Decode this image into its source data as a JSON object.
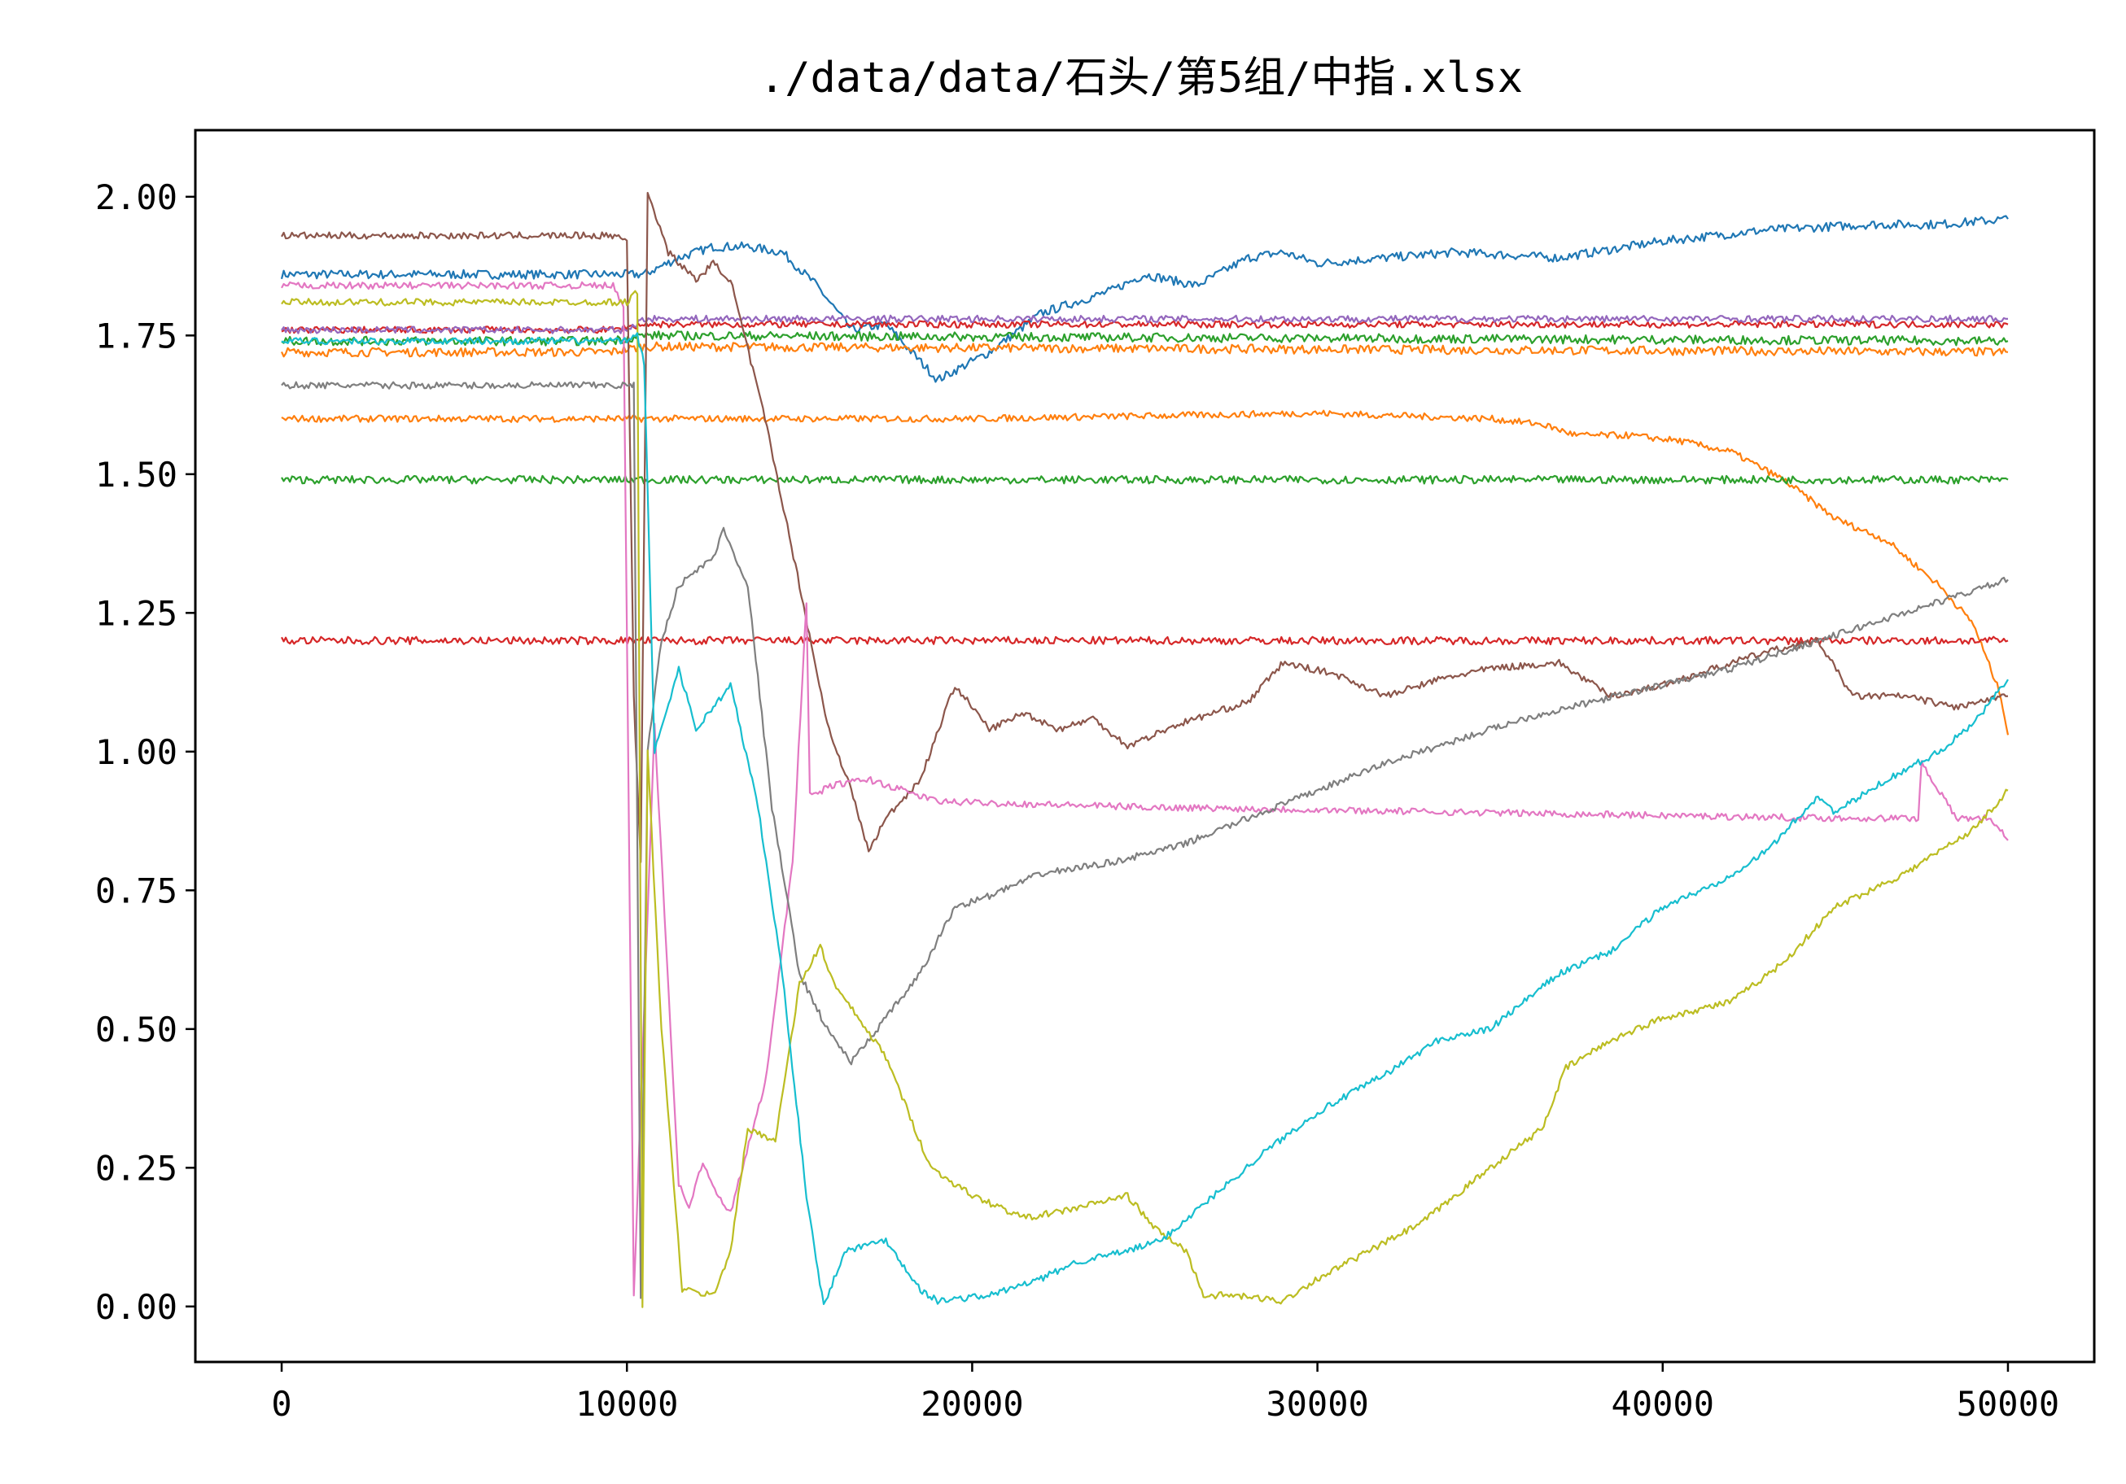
{
  "chart_data": {
    "type": "line",
    "title": "./data/data/石头/第5组/中指.xlsx",
    "xlabel": "",
    "ylabel": "",
    "xlim": [
      -2500,
      52500
    ],
    "ylim": [
      -0.1,
      2.12
    ],
    "xticks": [
      0,
      10000,
      20000,
      30000,
      40000,
      50000
    ],
    "xtick_labels": [
      "0",
      "10000",
      "20000",
      "30000",
      "40000",
      "50000"
    ],
    "yticks": [
      0.0,
      0.25,
      0.5,
      0.75,
      1.0,
      1.25,
      1.5,
      1.75,
      2.0
    ],
    "ytick_labels": [
      "0.00",
      "0.25",
      "0.50",
      "0.75",
      "1.00",
      "1.25",
      "1.50",
      "1.75",
      "2.00"
    ],
    "grid": false,
    "legend": "none",
    "series": [
      {
        "color": "#1f77b4",
        "noise": 0.008,
        "x": [
          0,
          10000,
          10500,
          11500,
          12500,
          13500,
          14500,
          15500,
          16500,
          17500,
          19000,
          20500,
          22000,
          24000,
          25000,
          26500,
          28000,
          29000,
          30000,
          32000,
          34000,
          37000,
          40000,
          43000,
          46000,
          48000,
          50000
        ],
        "y": [
          1.86,
          1.86,
          1.86,
          1.89,
          1.91,
          1.91,
          1.9,
          1.84,
          1.76,
          1.77,
          1.67,
          1.72,
          1.79,
          1.83,
          1.86,
          1.84,
          1.89,
          1.9,
          1.88,
          1.89,
          1.9,
          1.89,
          1.92,
          1.94,
          1.95,
          1.95,
          1.96
        ]
      },
      {
        "color": "#ff7f0e",
        "noise": 0.008,
        "x": [
          0,
          9500,
          10500,
          50000
        ],
        "y": [
          1.72,
          1.72,
          1.73,
          1.72
        ]
      },
      {
        "color": "#ff7f0e",
        "noise": 0.006,
        "x": [
          0,
          10000,
          20000,
          30000,
          35000,
          36500,
          37500,
          39000,
          40500,
          42000,
          43500,
          45000,
          46500,
          48000,
          49000,
          49800,
          50000
        ],
        "y": [
          1.6,
          1.6,
          1.6,
          1.61,
          1.6,
          1.59,
          1.57,
          1.57,
          1.56,
          1.54,
          1.49,
          1.42,
          1.38,
          1.3,
          1.23,
          1.1,
          1.03
        ]
      },
      {
        "color": "#2ca02c",
        "noise": 0.008,
        "x": [
          0,
          9500,
          10500,
          50000
        ],
        "y": [
          1.74,
          1.74,
          1.75,
          1.74
        ]
      },
      {
        "color": "#2ca02c",
        "noise": 0.007,
        "x": [
          0,
          50000
        ],
        "y": [
          1.49,
          1.49
        ]
      },
      {
        "color": "#d62728",
        "noise": 0.006,
        "x": [
          0,
          9500,
          10500,
          50000
        ],
        "y": [
          1.76,
          1.76,
          1.77,
          1.77
        ]
      },
      {
        "color": "#d62728",
        "noise": 0.007,
        "x": [
          0,
          50000
        ],
        "y": [
          1.2,
          1.2
        ]
      },
      {
        "color": "#9467bd",
        "noise": 0.006,
        "x": [
          0,
          10000,
          10500,
          50000
        ],
        "y": [
          1.76,
          1.76,
          1.78,
          1.78
        ]
      },
      {
        "color": "#8c564b",
        "noise": 0.006,
        "x": [
          0,
          9700,
          10000,
          10200,
          10400,
          10600,
          11200,
          12000,
          12500,
          13000,
          14000,
          15000,
          15800,
          16500,
          17000,
          17500,
          18500,
          19500,
          20500,
          21500,
          22500,
          23500,
          24500,
          26000,
          28000,
          29000,
          30500,
          32000,
          33500,
          35000,
          37000,
          38500,
          40000,
          41500,
          43000,
          44500,
          45500,
          47000,
          48500,
          50000
        ],
        "y": [
          1.93,
          1.93,
          1.92,
          1.1,
          0.8,
          2.01,
          1.9,
          1.85,
          1.88,
          1.85,
          1.6,
          1.3,
          1.05,
          0.93,
          0.82,
          0.88,
          0.95,
          1.12,
          1.04,
          1.07,
          1.04,
          1.06,
          1.01,
          1.05,
          1.09,
          1.16,
          1.14,
          1.1,
          1.13,
          1.15,
          1.16,
          1.1,
          1.12,
          1.15,
          1.18,
          1.2,
          1.1,
          1.1,
          1.08,
          1.1
        ]
      },
      {
        "color": "#e377c2",
        "noise": 0.006,
        "x": [
          0,
          9600,
          9900,
          10200,
          10800,
          11500,
          11800,
          12200,
          12600,
          13000,
          14000,
          14800,
          15200,
          15300,
          16000,
          17000,
          18000,
          19000,
          25000,
          35000,
          45000,
          47400,
          47500,
          48500,
          49500,
          50000
        ],
        "y": [
          1.84,
          1.84,
          1.8,
          0.02,
          1.05,
          0.22,
          0.18,
          0.26,
          0.2,
          0.17,
          0.4,
          0.8,
          1.27,
          0.92,
          0.94,
          0.95,
          0.93,
          0.91,
          0.9,
          0.89,
          0.88,
          0.88,
          0.98,
          0.88,
          0.88,
          0.84
        ]
      },
      {
        "color": "#7f7f7f",
        "noise": 0.006,
        "x": [
          0,
          10000,
          10200,
          10400,
          10600,
          11000,
          11500,
          12500,
          12800,
          13500,
          14200,
          15000,
          15800,
          16500,
          17500,
          18500,
          19500,
          20500,
          22000,
          24000,
          26000,
          28000,
          30000,
          32000,
          34000,
          36000,
          38000,
          40000,
          42000,
          44000,
          46000,
          48000,
          50000
        ],
        "y": [
          1.66,
          1.66,
          1.66,
          0.02,
          1.0,
          1.2,
          1.3,
          1.35,
          1.4,
          1.3,
          0.9,
          0.6,
          0.5,
          0.44,
          0.52,
          0.6,
          0.72,
          0.74,
          0.78,
          0.8,
          0.83,
          0.88,
          0.93,
          0.98,
          1.02,
          1.06,
          1.09,
          1.12,
          1.15,
          1.19,
          1.23,
          1.27,
          1.31
        ]
      },
      {
        "color": "#bcbd22",
        "noise": 0.006,
        "x": [
          0,
          10000,
          10300,
          10450,
          10600,
          11000,
          11600,
          12500,
          13000,
          13500,
          14300,
          15000,
          15600,
          16000,
          17500,
          18800,
          20000,
          21500,
          22500,
          24500,
          25300,
          26200,
          26700,
          27500,
          29000,
          30000,
          31500,
          33000,
          35000,
          36500,
          37200,
          38500,
          40000,
          42000,
          43500,
          45000,
          47000,
          49000,
          50000
        ],
        "y": [
          1.81,
          1.81,
          1.83,
          0.0,
          1.0,
          0.5,
          0.03,
          0.02,
          0.1,
          0.32,
          0.3,
          0.58,
          0.65,
          0.58,
          0.45,
          0.25,
          0.2,
          0.16,
          0.17,
          0.2,
          0.14,
          0.1,
          0.02,
          0.02,
          0.01,
          0.05,
          0.1,
          0.15,
          0.25,
          0.32,
          0.43,
          0.48,
          0.52,
          0.55,
          0.62,
          0.72,
          0.78,
          0.86,
          0.93
        ]
      },
      {
        "color": "#17becf",
        "noise": 0.006,
        "x": [
          0,
          10000,
          10300,
          10500,
          10800,
          11500,
          12000,
          12500,
          13000,
          13800,
          14500,
          15200,
          15700,
          16300,
          17500,
          18500,
          19000,
          20500,
          22000,
          23000,
          24500,
          25500,
          27000,
          28500,
          30000,
          32000,
          33500,
          35000,
          37000,
          38500,
          40000,
          41500,
          43000,
          44500,
          45000,
          46500,
          48000,
          49000,
          50000
        ],
        "y": [
          1.74,
          1.74,
          1.75,
          1.7,
          1.0,
          1.15,
          1.04,
          1.08,
          1.12,
          0.9,
          0.6,
          0.2,
          0.0,
          0.1,
          0.12,
          0.03,
          0.01,
          0.02,
          0.05,
          0.08,
          0.1,
          0.12,
          0.2,
          0.28,
          0.35,
          0.42,
          0.48,
          0.5,
          0.6,
          0.64,
          0.72,
          0.76,
          0.82,
          0.92,
          0.89,
          0.95,
          1.0,
          1.05,
          1.13
        ]
      }
    ]
  }
}
